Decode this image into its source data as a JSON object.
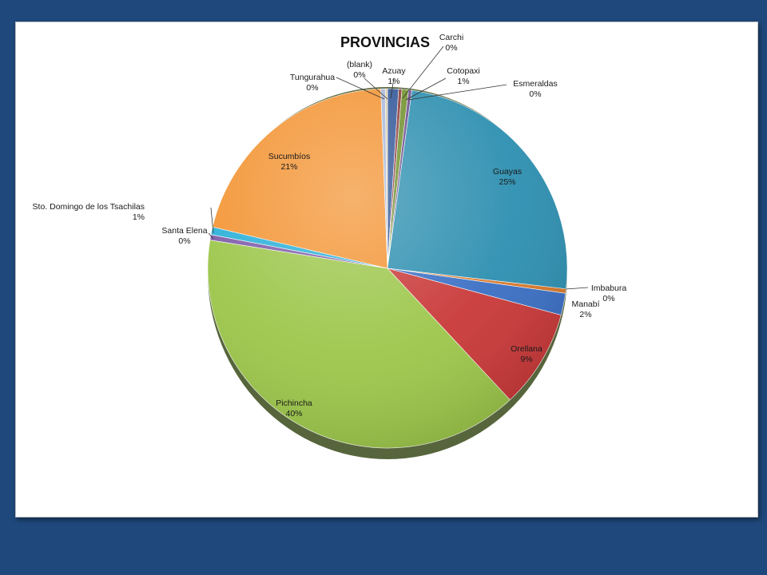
{
  "chart_data": {
    "type": "pie",
    "title": "PROVINCIAS",
    "slices": [
      {
        "name": "Azuay",
        "value": 1,
        "label": "1%",
        "color": "#2f5597"
      },
      {
        "name": "Carchi",
        "value": 0.3,
        "label": "0%",
        "color": "#8b3a3a"
      },
      {
        "name": "Cotopaxi",
        "value": 0.6,
        "label": "1%",
        "color": "#6f8f2a"
      },
      {
        "name": "Esmeraldas",
        "value": 0.3,
        "label": "0%",
        "color": "#6a4a8c"
      },
      {
        "name": "Guayas",
        "value": 25,
        "label": "25%",
        "color": "#2d8fb0"
      },
      {
        "name": "Imbabura",
        "value": 0.4,
        "label": "0%",
        "color": "#d9782a"
      },
      {
        "name": "Manabí",
        "value": 2,
        "label": "2%",
        "color": "#3a6fc4"
      },
      {
        "name": "Orellana",
        "value": 9,
        "label": "9%",
        "color": "#c93838"
      },
      {
        "name": "Pichincha",
        "value": 40,
        "label": "40%",
        "color": "#9cc64a"
      },
      {
        "name": "Santa Elena",
        "value": 0.5,
        "label": "0%",
        "color": "#7e5aa8"
      },
      {
        "name": "Sto. Domingo de los Tsachilas",
        "value": 0.7,
        "label": "1%",
        "color": "#29b0d8"
      },
      {
        "name": "Sucumbíos",
        "value": 21,
        "label": "21%",
        "color": "#f39433"
      },
      {
        "name": "Tungurahua",
        "value": 0.4,
        "label": "0%",
        "color": "#a8b8d8"
      },
      {
        "name": "(blank)",
        "value": 0.2,
        "label": "0%",
        "color": "#d8c8a0"
      }
    ]
  }
}
